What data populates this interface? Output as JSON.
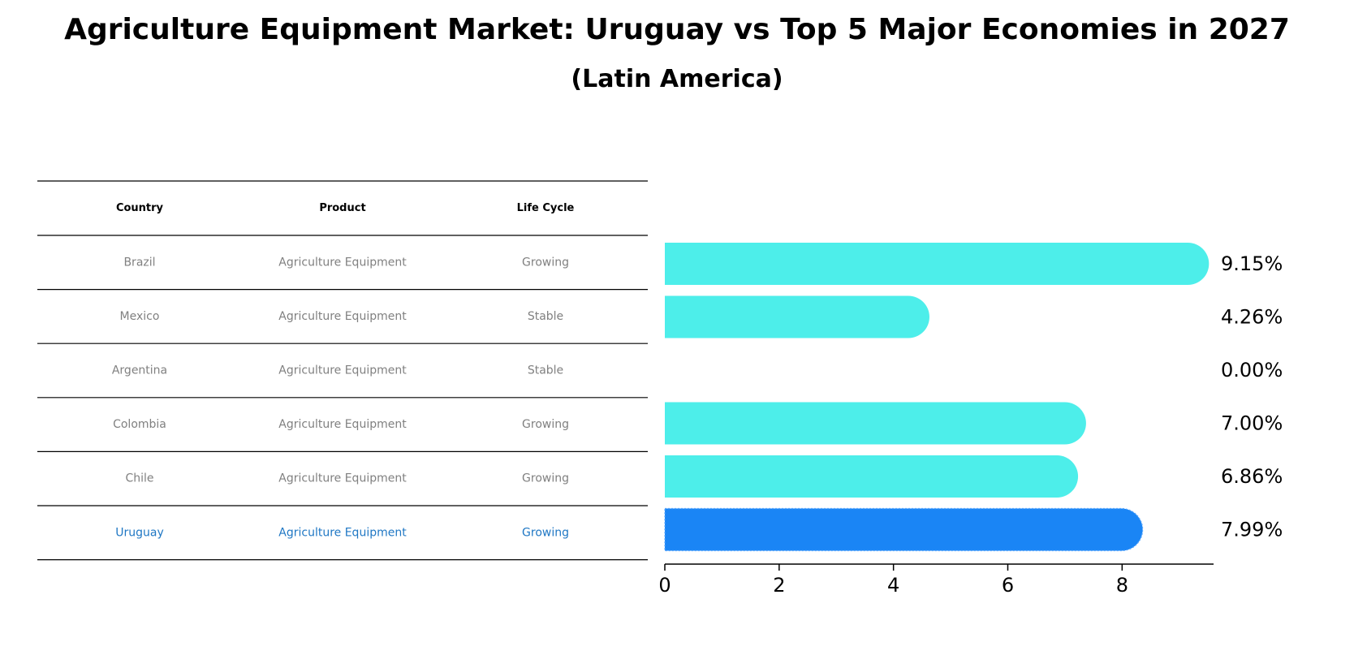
{
  "chart_data": {
    "type": "bar",
    "orientation": "horizontal",
    "title": "Agriculture Equipment Market: Uruguay vs Top 5 Major Economies in 2027",
    "subtitle": "(Latin America)",
    "table": {
      "columns": [
        "Country",
        "Product",
        "Life Cycle"
      ],
      "rows": [
        {
          "country": "Brazil",
          "product": "Agriculture Equipment",
          "life_cycle": "Growing",
          "highlight": false
        },
        {
          "country": "Mexico",
          "product": "Agriculture Equipment",
          "life_cycle": "Stable",
          "highlight": false
        },
        {
          "country": "Argentina",
          "product": "Agriculture Equipment",
          "life_cycle": "Stable",
          "highlight": false
        },
        {
          "country": "Colombia",
          "product": "Agriculture Equipment",
          "life_cycle": "Growing",
          "highlight": false
        },
        {
          "country": "Chile",
          "product": "Agriculture Equipment",
          "life_cycle": "Growing",
          "highlight": false
        },
        {
          "country": "Uruguay",
          "product": "Agriculture Equipment",
          "life_cycle": "Growing",
          "highlight": true
        }
      ]
    },
    "categories": [
      "Brazil",
      "Mexico",
      "Argentina",
      "Colombia",
      "Chile",
      "Uruguay"
    ],
    "values": [
      9.15,
      4.26,
      0.0,
      7.0,
      6.86,
      7.99
    ],
    "value_labels": [
      "9.15%",
      "4.26%",
      "0.00%",
      "7.00%",
      "6.86%",
      "7.99%"
    ],
    "xticks": [
      0,
      2,
      4,
      6,
      8
    ],
    "xlim": [
      0,
      9.6
    ],
    "xlabel": "",
    "ylabel": "",
    "grid": false,
    "colors": {
      "bar": "#4deeea",
      "highlight_bar": "#1a85f5",
      "highlight_text": "#1f77c4",
      "row_text": "#808080",
      "header_text": "#000000",
      "rule": "#000000"
    }
  }
}
